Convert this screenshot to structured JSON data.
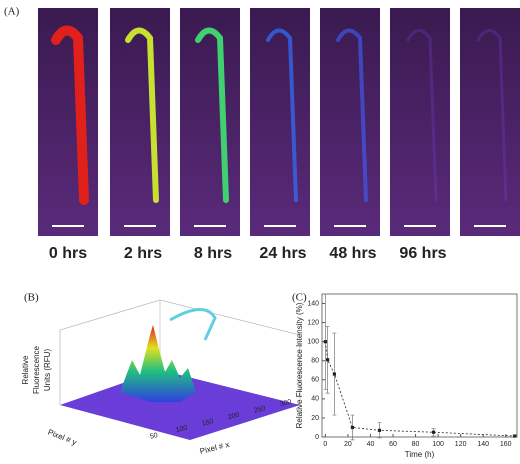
{
  "panels": {
    "a": {
      "label": "(A)",
      "times": [
        "0 hrs",
        "2 hrs",
        "8 hrs",
        "24 hrs",
        "48 hrs",
        "96 hrs"
      ]
    },
    "b": {
      "label": "(B)",
      "z_label": [
        "Relative",
        "Fluorescence",
        "Units (RFU)"
      ],
      "y_label": "Pixel # y",
      "x_label": "Pixel # x",
      "x_ticks": [
        50,
        100,
        150,
        200,
        250,
        300
      ]
    }
  },
  "chart_data": {
    "type": "line",
    "label": "(C)",
    "x_label": "Time (h)",
    "y_label": "Relative Fluorescence Intensity (%)",
    "x": [
      0,
      2,
      8,
      24,
      48,
      96,
      168
    ],
    "values": [
      100,
      81,
      66,
      10,
      7,
      5,
      1
    ],
    "errors": [
      50,
      35,
      43,
      13,
      8,
      4,
      1
    ],
    "color": "#222222",
    "xlim": [
      -3,
      170
    ],
    "ylim": [
      0,
      150
    ],
    "xticks": [
      0,
      20,
      40,
      60,
      80,
      100,
      120,
      140,
      160
    ],
    "yticks": [
      0,
      20,
      40,
      60,
      80,
      100,
      120,
      140
    ]
  }
}
